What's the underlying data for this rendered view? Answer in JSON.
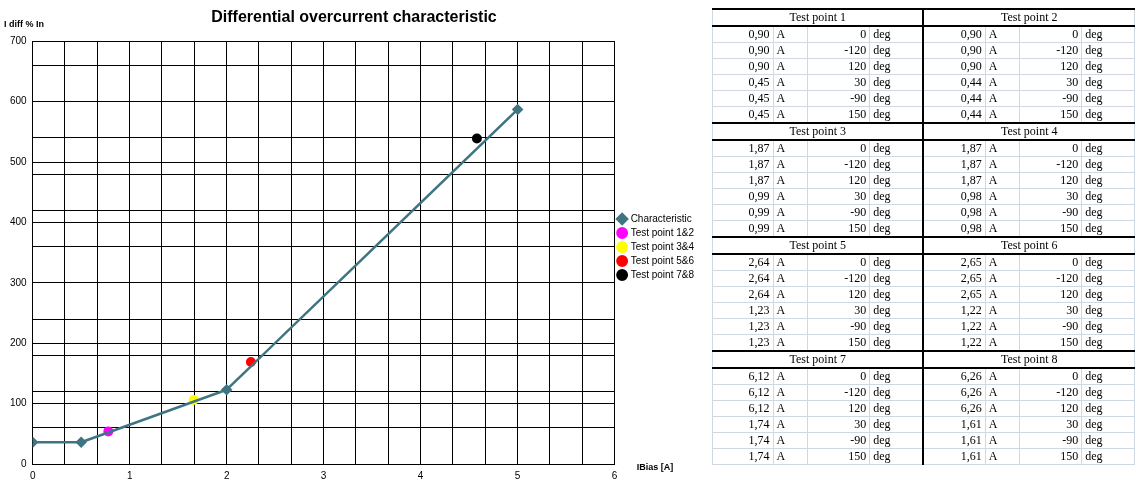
{
  "chart_data": [
    {
      "type": "line",
      "title": "Differential overcurrent characteristic",
      "xlabel": "IBias [A]",
      "ylabel": "I diff % In",
      "xlim": [
        0,
        6
      ],
      "xticks": [
        0,
        {
          "value": 0.33,
          "label": null
        },
        {
          "value": 0.67,
          "label": null
        },
        1,
        {
          "value": 1.33,
          "label": null
        },
        {
          "value": 1.67,
          "label": null
        },
        2,
        {
          "value": 2.33,
          "label": null
        },
        {
          "value": 2.67,
          "label": null
        },
        3,
        {
          "value": 3.33,
          "label": null
        },
        {
          "value": 3.67,
          "label": null
        },
        4,
        {
          "value": 4.33,
          "label": null
        },
        {
          "value": 4.67,
          "label": null
        },
        5,
        {
          "value": 5.33,
          "label": null
        },
        {
          "value": 5.67,
          "label": null
        },
        6
      ],
      "ylim": [
        0,
        700
      ],
      "yticks": [
        0,
        {
          "value": 60,
          "label": null
        },
        100,
        {
          "value": 120,
          "label": null
        },
        {
          "value": 180,
          "label": null
        },
        200,
        {
          "value": 240,
          "label": null
        },
        300,
        {
          "value": 360,
          "label": null
        },
        400,
        {
          "value": 420,
          "label": null
        },
        {
          "value": 480,
          "label": null
        },
        500,
        {
          "value": 540,
          "label": null
        },
        600,
        {
          "value": 660,
          "label": null
        },
        700
      ],
      "grid": true,
      "legend": "right",
      "series": [
        {
          "name": "Characteristic",
          "type": "line",
          "color": "#3f7582",
          "marker": "diamond",
          "x": [
            0,
            0.5,
            2,
            5
          ],
          "values": [
            36,
            36,
            123,
            587
          ]
        },
        {
          "name": "Test point 1&2",
          "type": "scatter",
          "color": "#ff00ff",
          "marker": "circle",
          "x": [
            0.78
          ],
          "values": [
            54
          ]
        },
        {
          "name": "Test point 3&4",
          "type": "scatter",
          "color": "#ffff00",
          "marker": "circle",
          "x": [
            1.66
          ],
          "values": [
            106
          ]
        },
        {
          "name": "Test point 5&6",
          "type": "scatter",
          "color": "#ff0000",
          "marker": "circle",
          "x": [
            2.25
          ],
          "values": [
            169
          ]
        },
        {
          "name": "Test point 7&8",
          "type": "scatter",
          "color": "#000000",
          "marker": "circle",
          "x": [
            4.58
          ],
          "values": [
            539
          ]
        }
      ]
    },
    {
      "type": "other",
      "annotations": [
        "Test point 1",
        "0,90",
        "A",
        "0",
        "deg",
        "0,90",
        "A",
        "-120",
        "deg",
        "0,90",
        "A",
        "120",
        "deg",
        "0,45",
        "A",
        "30",
        "deg",
        "0,45",
        "A",
        "-90",
        "deg",
        "0,45",
        "A",
        "150",
        "deg",
        "Test point 2",
        "0,90",
        "A",
        "0",
        "deg",
        "0,90",
        "A",
        "-120",
        "deg",
        "0,90",
        "A",
        "120",
        "deg",
        "0,44",
        "A",
        "30",
        "deg",
        "0,44",
        "A",
        "-90",
        "deg",
        "0,44",
        "A",
        "150",
        "deg",
        "Test point 3",
        "1,87",
        "A",
        "0",
        "deg",
        "1,87",
        "A",
        "-120",
        "deg",
        "1,87",
        "A",
        "120",
        "deg",
        "0,99",
        "A",
        "30",
        "deg",
        "0,99",
        "A",
        "-90",
        "deg",
        "0,99",
        "A",
        "150",
        "deg",
        "Test point 4",
        "1,87",
        "A",
        "0",
        "deg",
        "1,87",
        "A",
        "-120",
        "deg",
        "1,87",
        "A",
        "120",
        "deg",
        "0,98",
        "A",
        "30",
        "deg",
        "0,98",
        "A",
        "-90",
        "deg",
        "0,98",
        "A",
        "150",
        "deg",
        "Test point 5",
        "2,64",
        "A",
        "0",
        "deg",
        "2,64",
        "A",
        "-120",
        "deg",
        "2,64",
        "A",
        "120",
        "deg",
        "1,23",
        "A",
        "30",
        "deg",
        "1,23",
        "A",
        "-90",
        "deg",
        "1,23",
        "A",
        "150",
        "deg",
        "Test point 6",
        "2,65",
        "A",
        "0",
        "deg",
        "2,65",
        "A",
        "-120",
        "deg",
        "2,65",
        "A",
        "120",
        "deg",
        "1,22",
        "A",
        "30",
        "deg",
        "1,22",
        "A",
        "-90",
        "deg",
        "1,22",
        "A",
        "150",
        "deg",
        "Test point 7",
        "6,12",
        "A",
        "0",
        "deg",
        "6,12",
        "A",
        "-120",
        "deg",
        "6,12",
        "A",
        "120",
        "deg",
        "1,74",
        "A",
        "30",
        "deg",
        "1,74",
        "A",
        "-90",
        "deg",
        "1,74",
        "A",
        "150",
        "deg",
        "Test point 8",
        "6,26",
        "A",
        "0",
        "deg",
        "6,26",
        "A",
        "-120",
        "deg",
        "6,26",
        "A",
        "120",
        "deg",
        "1,61",
        "A",
        "30",
        "deg",
        "1,61",
        "A",
        "-90",
        "deg",
        "1,61",
        "A",
        "150",
        "deg"
      ]
    }
  ]
}
